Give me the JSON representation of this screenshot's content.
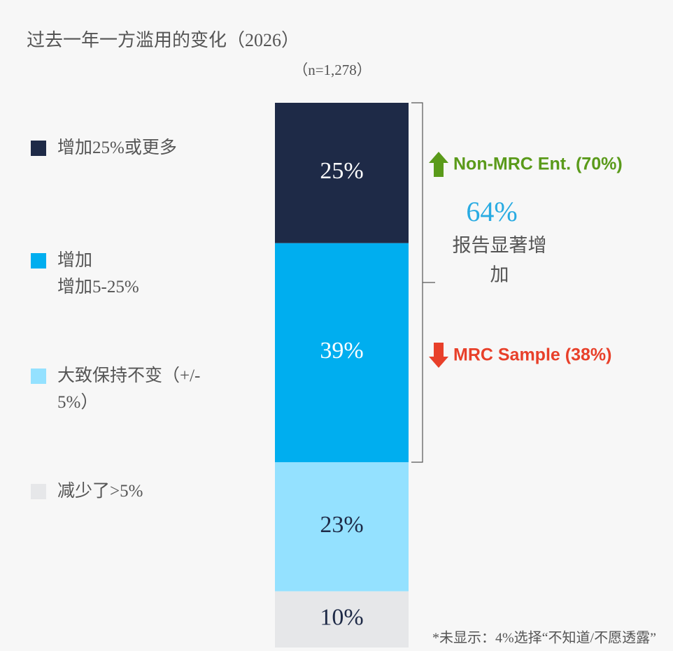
{
  "chart_data": {
    "type": "stacked-bar",
    "title": "过去一年一方滥用的变化（2026）",
    "subtitle": "（n=1,278）",
    "series": [
      {
        "name": "增加25%或更多",
        "color": "#1e2a47",
        "label_color": "#ffffff",
        "values": [
          25
        ],
        "value_labels": [
          "25%"
        ]
      },
      {
        "name": "增加\n增加5-25%",
        "color": "#00aeef",
        "label_color": "#ffffff",
        "values": [
          39
        ],
        "value_labels": [
          "39%"
        ]
      },
      {
        "name": "大致保持不变（+/- 5%）",
        "color": "#94e1ff",
        "label_color": "#1e2a47",
        "values": [
          23
        ],
        "value_labels": [
          "23%"
        ]
      },
      {
        "name": "减少了>5%",
        "color": "#e6e7e9",
        "label_color": "#1e2a47",
        "values": [
          10
        ],
        "value_labels": [
          "10%"
        ]
      }
    ],
    "bracket": {
      "value": 64,
      "label": "64%",
      "text": "报告显著增加",
      "color": "#29abe2"
    },
    "annotations": [
      {
        "text": "Non-MRC Ent. (70%)",
        "color": "#5a9a1a",
        "direction": "up"
      },
      {
        "text": "MRC Sample (38%)",
        "color": "#e8402a",
        "direction": "down"
      }
    ],
    "footnote": "*未显示：4%选择“不知道/不愿透露”"
  }
}
